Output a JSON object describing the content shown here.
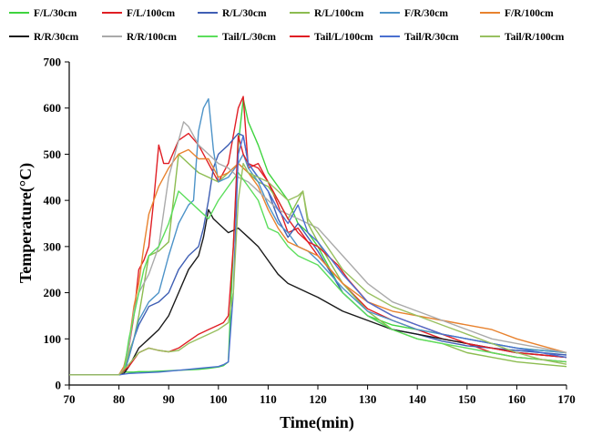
{
  "chart_data": {
    "type": "line",
    "title": "",
    "xlabel": "Time(min)",
    "ylabel": "Temperature(°C)",
    "xlim": [
      70,
      170
    ],
    "ylim": [
      0,
      700
    ],
    "xticks": [
      "70",
      "80",
      "90",
      "100",
      "110",
      "120",
      "130",
      "140",
      "150",
      "160",
      "170"
    ],
    "yticks": [
      "0",
      "100",
      "200",
      "300",
      "400",
      "500",
      "600",
      "700"
    ],
    "grid": false,
    "legend_position": "top",
    "series": [
      {
        "name": "F/L/30cm",
        "color": "#3ed43e",
        "x": [
          70,
          80,
          81,
          82,
          83,
          84,
          85,
          86,
          88,
          90,
          92,
          94,
          96,
          98,
          100,
          101,
          102,
          103,
          104,
          105,
          106,
          108,
          110,
          112,
          114,
          116,
          118,
          120,
          125,
          130,
          135,
          140,
          145,
          150,
          155,
          160,
          165,
          170
        ],
        "y": [
          22,
          22,
          28,
          28,
          28,
          29,
          29,
          29,
          30,
          31,
          32,
          33,
          34,
          36,
          39,
          42,
          50,
          300,
          520,
          620,
          570,
          520,
          460,
          430,
          400,
          350,
          330,
          300,
          200,
          150,
          130,
          120,
          110,
          100,
          90,
          80,
          75,
          70
        ]
      },
      {
        "name": "F/L/100cm",
        "color": "#e01e24",
        "x": [
          70,
          80,
          81,
          82,
          83,
          84,
          85,
          86,
          87,
          88,
          89,
          90,
          92,
          94,
          96,
          98,
          100,
          102,
          104,
          105,
          106,
          108,
          110,
          112,
          114,
          116,
          118,
          120,
          125,
          130,
          135,
          140,
          145,
          150,
          155,
          160,
          165,
          170
        ],
        "y": [
          22,
          22,
          40,
          80,
          150,
          250,
          270,
          300,
          400,
          520,
          480,
          480,
          530,
          545,
          520,
          480,
          440,
          480,
          600,
          625,
          470,
          480,
          440,
          390,
          330,
          340,
          310,
          280,
          220,
          165,
          140,
          120,
          100,
          90,
          70,
          60,
          55,
          50
        ]
      },
      {
        "name": "R/L/30cm",
        "color": "#3f5fb4",
        "x": [
          70,
          80,
          81,
          82,
          83,
          84,
          85,
          86,
          88,
          90,
          92,
          94,
          96,
          97,
          98,
          99,
          100,
          102,
          104,
          105,
          106,
          108,
          110,
          112,
          114,
          116,
          118,
          120,
          125,
          130,
          135,
          140,
          145,
          150,
          155,
          160,
          165,
          170
        ],
        "y": [
          22,
          22,
          25,
          60,
          100,
          130,
          150,
          170,
          180,
          200,
          250,
          280,
          300,
          340,
          400,
          470,
          500,
          520,
          545,
          540,
          480,
          450,
          420,
          360,
          320,
          350,
          320,
          290,
          200,
          150,
          120,
          110,
          95,
          85,
          80,
          75,
          70,
          65
        ]
      },
      {
        "name": "R/L/100cm",
        "color": "#8cbc50",
        "x": [
          70,
          80,
          81,
          82,
          83,
          84,
          86,
          88,
          90,
          92,
          94,
          96,
          98,
          100,
          102,
          104,
          106,
          108,
          110,
          112,
          114,
          116,
          117,
          118,
          120,
          125,
          130,
          135,
          140,
          145,
          150,
          155,
          160,
          165,
          170
        ],
        "y": [
          22,
          22,
          30,
          70,
          100,
          150,
          280,
          290,
          310,
          500,
          480,
          460,
          450,
          440,
          460,
          480,
          460,
          440,
          430,
          400,
          360,
          400,
          420,
          350,
          310,
          220,
          160,
          120,
          100,
          90,
          70,
          60,
          50,
          45,
          40
        ]
      },
      {
        "name": "F/R/30cm",
        "color": "#4d93c8",
        "x": [
          70,
          80,
          81,
          82,
          83,
          84,
          85,
          86,
          88,
          90,
          92,
          94,
          95,
          96,
          97,
          98,
          99,
          100,
          102,
          104,
          105,
          106,
          108,
          110,
          112,
          114,
          116,
          118,
          120,
          125,
          130,
          135,
          140,
          145,
          150,
          155,
          160,
          165,
          170
        ],
        "y": [
          22,
          22,
          25,
          60,
          100,
          140,
          160,
          180,
          200,
          280,
          350,
          390,
          400,
          550,
          600,
          620,
          510,
          440,
          450,
          480,
          500,
          470,
          440,
          390,
          350,
          330,
          300,
          290,
          270,
          210,
          160,
          140,
          120,
          110,
          100,
          90,
          80,
          75,
          70
        ]
      },
      {
        "name": "F/R/100cm",
        "color": "#e8822e",
        "x": [
          70,
          80,
          81,
          82,
          83,
          84,
          85,
          86,
          88,
          90,
          92,
          94,
          96,
          98,
          100,
          102,
          104,
          106,
          108,
          110,
          112,
          114,
          116,
          118,
          120,
          125,
          130,
          135,
          140,
          145,
          150,
          155,
          160,
          165,
          170
        ],
        "y": [
          22,
          22,
          40,
          90,
          170,
          220,
          300,
          370,
          430,
          470,
          500,
          510,
          490,
          490,
          450,
          460,
          480,
          460,
          430,
          380,
          340,
          310,
          300,
          290,
          280,
          220,
          180,
          160,
          150,
          140,
          130,
          120,
          100,
          85,
          70
        ]
      },
      {
        "name": "R/R/30cm",
        "color": "#1a1a1a",
        "x": [
          70,
          80,
          81,
          82,
          83,
          84,
          85,
          86,
          88,
          90,
          92,
          94,
          96,
          97,
          98,
          99,
          100,
          102,
          104,
          106,
          108,
          110,
          112,
          114,
          116,
          118,
          120,
          125,
          130,
          135,
          140,
          145,
          150,
          155,
          160,
          165,
          170
        ],
        "y": [
          22,
          22,
          25,
          40,
          60,
          80,
          90,
          100,
          120,
          150,
          200,
          250,
          280,
          320,
          380,
          360,
          350,
          330,
          340,
          320,
          300,
          270,
          240,
          220,
          210,
          200,
          190,
          160,
          140,
          120,
          110,
          100,
          90,
          80,
          70,
          65,
          60
        ]
      },
      {
        "name": "R/R/100cm",
        "color": "#aaaaaa",
        "x": [
          70,
          80,
          81,
          82,
          83,
          84,
          85,
          86,
          88,
          90,
          92,
          93,
          94,
          96,
          98,
          100,
          102,
          104,
          106,
          108,
          110,
          112,
          114,
          116,
          118,
          120,
          125,
          130,
          135,
          140,
          145,
          150,
          155,
          160,
          165,
          170
        ],
        "y": [
          22,
          22,
          35,
          80,
          160,
          200,
          220,
          240,
          300,
          450,
          530,
          570,
          560,
          520,
          500,
          480,
          470,
          450,
          440,
          420,
          400,
          380,
          370,
          360,
          350,
          340,
          280,
          220,
          180,
          160,
          140,
          120,
          100,
          90,
          80,
          70
        ]
      },
      {
        "name": "Tail/L/30cm",
        "color": "#5cde5c",
        "x": [
          70,
          80,
          81,
          82,
          83,
          84,
          85,
          86,
          88,
          90,
          92,
          94,
          96,
          98,
          100,
          102,
          104,
          106,
          108,
          110,
          112,
          114,
          116,
          118,
          120,
          125,
          130,
          135,
          140,
          145,
          150,
          155,
          160,
          165,
          170
        ],
        "y": [
          22,
          22,
          30,
          100,
          150,
          200,
          250,
          280,
          300,
          350,
          420,
          400,
          380,
          360,
          400,
          430,
          460,
          430,
          400,
          340,
          330,
          300,
          280,
          270,
          260,
          200,
          150,
          120,
          100,
          90,
          80,
          70,
          60,
          55,
          50
        ]
      },
      {
        "name": "Tail/L/100cm",
        "color": "#e01e24",
        "x": [
          70,
          80,
          82,
          84,
          86,
          88,
          90,
          92,
          94,
          96,
          98,
          100,
          101,
          102,
          103,
          104,
          105,
          106,
          108,
          110,
          112,
          114,
          116,
          118,
          120,
          122,
          124,
          126,
          130,
          135,
          140,
          145,
          150,
          155,
          160,
          165,
          170
        ],
        "y": [
          22,
          22,
          40,
          70,
          80,
          75,
          72,
          80,
          95,
          110,
          120,
          130,
          135,
          150,
          300,
          540,
          500,
          480,
          470,
          440,
          400,
          360,
          330,
          310,
          300,
          280,
          260,
          230,
          180,
          150,
          130,
          110,
          90,
          80,
          70,
          65,
          60
        ]
      },
      {
        "name": "Tail/R/30cm",
        "color": "#4a6fd0",
        "x": [
          70,
          80,
          82,
          84,
          86,
          88,
          90,
          92,
          94,
          96,
          98,
          100,
          101,
          102,
          103,
          104,
          105,
          106,
          108,
          110,
          112,
          114,
          116,
          118,
          120,
          125,
          130,
          135,
          140,
          145,
          150,
          155,
          160,
          165,
          170
        ],
        "y": [
          22,
          22,
          25,
          26,
          27,
          28,
          30,
          32,
          34,
          36,
          38,
          40,
          44,
          50,
          200,
          500,
          540,
          480,
          450,
          420,
          380,
          350,
          390,
          330,
          310,
          240,
          180,
          150,
          130,
          110,
          100,
          90,
          80,
          70,
          60
        ]
      },
      {
        "name": "Tail/R/100cm",
        "color": "#98c060",
        "x": [
          70,
          80,
          82,
          84,
          86,
          88,
          90,
          92,
          94,
          96,
          98,
          100,
          102,
          103,
          104,
          105,
          106,
          108,
          110,
          112,
          114,
          116,
          117,
          118,
          120,
          125,
          130,
          135,
          140,
          145,
          150,
          155,
          160,
          165,
          170
        ],
        "y": [
          22,
          22,
          45,
          70,
          80,
          75,
          72,
          75,
          90,
          100,
          110,
          120,
          135,
          200,
          400,
          480,
          460,
          450,
          440,
          420,
          400,
          410,
          420,
          360,
          330,
          250,
          200,
          170,
          150,
          130,
          110,
          90,
          70,
          55,
          45
        ]
      }
    ]
  }
}
